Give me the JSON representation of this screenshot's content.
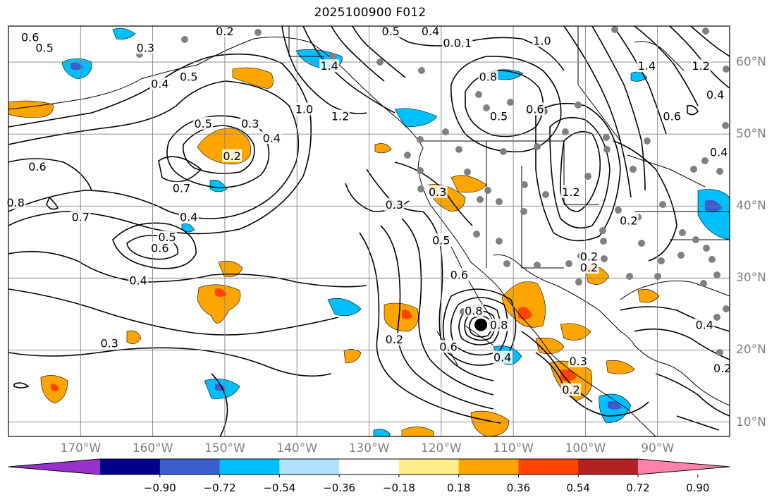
{
  "title": "2025100900 F012",
  "axes": {
    "lon_labels": [
      {
        "text": "170°W",
        "lon": -170
      },
      {
        "text": "160°W",
        "lon": -160
      },
      {
        "text": "150°W",
        "lon": -150
      },
      {
        "text": "140°W",
        "lon": -140
      },
      {
        "text": "130°W",
        "lon": -130
      },
      {
        "text": "120°W",
        "lon": -120
      },
      {
        "text": "110°W",
        "lon": -110
      },
      {
        "text": "100°W",
        "lon": -100
      },
      {
        "text": "90°W",
        "lon": -90
      }
    ],
    "lat_labels": [
      {
        "text": "60°N",
        "lat": 60
      },
      {
        "text": "50°N",
        "lat": 50
      },
      {
        "text": "40°N",
        "lat": 40
      },
      {
        "text": "30°N",
        "lat": 30
      },
      {
        "text": "20°N",
        "lat": 20
      },
      {
        "text": "10°N",
        "lat": 10
      }
    ],
    "lon_range": [
      -180,
      -80
    ],
    "lat_range": [
      8,
      65
    ],
    "grid": true
  },
  "colorbar": {
    "labels": [
      "−0.90",
      "−0.72",
      "−0.54",
      "−0.36",
      "−0.18",
      "0.18",
      "0.36",
      "0.54",
      "0.72",
      "0.90"
    ],
    "bins": [
      -0.9,
      -0.72,
      -0.54,
      -0.36,
      -0.18,
      0.18,
      0.36,
      0.54,
      0.72,
      0.9
    ],
    "colors": [
      "#9932cc",
      "#00008b",
      "#3a5fcd",
      "#00bfff",
      "#b0e2ff",
      "#ffffff",
      "#ffec8b",
      "#ffa500",
      "#ff4500",
      "#b22222",
      "#ff82ab"
    ],
    "extend": "both"
  },
  "contour_labels": [
    {
      "text": "0.6",
      "lon": -177,
      "lat": 63.5
    },
    {
      "text": "0.5",
      "lon": -175,
      "lat": 62
    },
    {
      "text": "0.3",
      "lon": -161,
      "lat": 62
    },
    {
      "text": "0.2",
      "lon": -150,
      "lat": 64.3
    },
    {
      "text": "0.4",
      "lon": -159,
      "lat": 57
    },
    {
      "text": "0.5",
      "lon": -155,
      "lat": 58
    },
    {
      "text": "0.5",
      "lon": -153,
      "lat": 51.5
    },
    {
      "text": "0.3",
      "lon": -146.5,
      "lat": 51.5
    },
    {
      "text": "0.4",
      "lon": -143.5,
      "lat": 49.5
    },
    {
      "text": "0.2",
      "lon": -149,
      "lat": 47
    },
    {
      "text": "0.6",
      "lon": -176,
      "lat": 45.5
    },
    {
      "text": "0.7",
      "lon": -156,
      "lat": 42.5
    },
    {
      "text": "0.4",
      "lon": -155,
      "lat": 38.5
    },
    {
      "text": "0.8",
      "lon": -179,
      "lat": 40.5
    },
    {
      "text": "0.7",
      "lon": -170,
      "lat": 38.5
    },
    {
      "text": "0.5",
      "lon": -158,
      "lat": 35.7
    },
    {
      "text": "0.6",
      "lon": -159,
      "lat": 34.2
    },
    {
      "text": "0.4",
      "lon": -162,
      "lat": 29.7
    },
    {
      "text": "0.3",
      "lon": -166,
      "lat": 21
    },
    {
      "text": "0.2",
      "lon": -126.5,
      "lat": 21.5
    },
    {
      "text": "1.0",
      "lon": -139,
      "lat": 53.5
    },
    {
      "text": "1.4",
      "lon": -135.5,
      "lat": 59.5
    },
    {
      "text": "1.2",
      "lon": -134,
      "lat": 52.5
    },
    {
      "text": "0.5",
      "lon": -127,
      "lat": 64.3
    },
    {
      "text": "0.4",
      "lon": -121.5,
      "lat": 64.3
    },
    {
      "text": "0.1",
      "lon": -118.5,
      "lat": 62.7
    },
    {
      "text": "0.1",
      "lon": -117,
      "lat": 62.7
    },
    {
      "text": "1.0",
      "lon": -106,
      "lat": 63
    },
    {
      "text": "0.8",
      "lon": -113.5,
      "lat": 58
    },
    {
      "text": "0.5",
      "lon": -112,
      "lat": 52.5
    },
    {
      "text": "0.6",
      "lon": -107,
      "lat": 53.5
    },
    {
      "text": "1.2",
      "lon": -102,
      "lat": 42
    },
    {
      "text": "1.4",
      "lon": -91.5,
      "lat": 59.5
    },
    {
      "text": "1.2",
      "lon": -84,
      "lat": 59.5
    },
    {
      "text": "0.4",
      "lon": -82,
      "lat": 55.5
    },
    {
      "text": "0.6",
      "lon": -88,
      "lat": 52.5
    },
    {
      "text": "0.4",
      "lon": -81.5,
      "lat": 47.5
    },
    {
      "text": "0.3",
      "lon": -126.5,
      "lat": 40.2
    },
    {
      "text": "0.3",
      "lon": -120.5,
      "lat": 42
    },
    {
      "text": "0.5",
      "lon": -120,
      "lat": 35.3
    },
    {
      "text": "0.6",
      "lon": -117.5,
      "lat": 30.5
    },
    {
      "text": "0.6",
      "lon": -119,
      "lat": 20.5
    },
    {
      "text": "0.8",
      "lon": -115.5,
      "lat": 25.5
    },
    {
      "text": "0.8",
      "lon": -112,
      "lat": 23.5
    },
    {
      "text": "0.4",
      "lon": -111.5,
      "lat": 19
    },
    {
      "text": "0.2",
      "lon": -94,
      "lat": 38
    },
    {
      "text": "0.2",
      "lon": -99.5,
      "lat": 33
    },
    {
      "text": "0.2",
      "lon": -99.5,
      "lat": 31.5
    },
    {
      "text": "0.3",
      "lon": -101,
      "lat": 18.5
    },
    {
      "text": "0.2",
      "lon": -102,
      "lat": 14.5
    },
    {
      "text": "0.2",
      "lon": -81,
      "lat": 17.5
    },
    {
      "text": "0.4",
      "lon": -83.5,
      "lat": 23.5
    }
  ],
  "storm_center": {
    "lon": -114.5,
    "lat": 23.5
  }
}
